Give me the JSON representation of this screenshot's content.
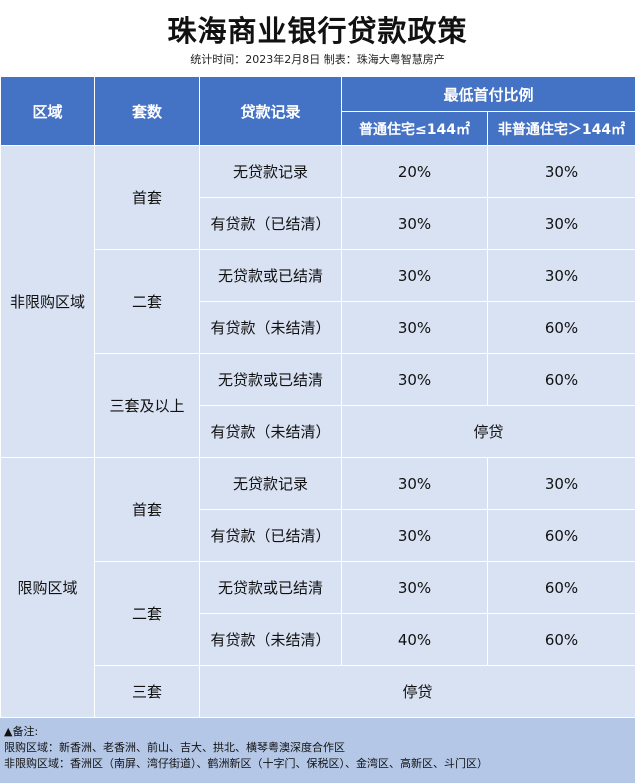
{
  "title": "珠海商业银行贷款政策",
  "subtitle": "统计时间：2023年2月8日  制表：珠海大粤智慧房产",
  "headers": {
    "region": "区域",
    "count": "套数",
    "loan_record": "贷款记录",
    "min_down_payment": "最低首付比例",
    "ordinary": "普通住宅≤144㎡",
    "non_ordinary": "非普通住宅＞144㎡"
  },
  "regions": [
    {
      "name": "非限购区域",
      "groups": [
        {
          "count": "首套",
          "rows": [
            {
              "record": "无贷款记录",
              "ordinary": "20%",
              "non_ordinary": "30%"
            },
            {
              "record": "有贷款（已结清）",
              "ordinary": "30%",
              "non_ordinary": "30%"
            }
          ]
        },
        {
          "count": "二套",
          "rows": [
            {
              "record": "无贷款或已结清",
              "ordinary": "30%",
              "non_ordinary": "30%"
            },
            {
              "record": "有贷款（未结清）",
              "ordinary": "30%",
              "non_ordinary": "60%"
            }
          ]
        },
        {
          "count": "三套及以上",
          "rows": [
            {
              "record": "无贷款或已结清",
              "ordinary": "30%",
              "non_ordinary": "60%"
            },
            {
              "record": "有贷款（未结清）",
              "merged": "停贷"
            }
          ]
        }
      ]
    },
    {
      "name": "限购区域",
      "groups": [
        {
          "count": "首套",
          "rows": [
            {
              "record": "无贷款记录",
              "ordinary": "30%",
              "non_ordinary": "30%"
            },
            {
              "record": "有贷款（已结清）",
              "ordinary": "30%",
              "non_ordinary": "60%"
            }
          ]
        },
        {
          "count": "二套",
          "rows": [
            {
              "record": "无贷款或已结清",
              "ordinary": "30%",
              "non_ordinary": "60%"
            },
            {
              "record": "有贷款（未结清）",
              "ordinary": "40%",
              "non_ordinary": "60%"
            }
          ]
        },
        {
          "count": "三套",
          "rows": [
            {
              "all_merged": "停贷"
            }
          ]
        }
      ]
    }
  ],
  "notes": {
    "heading": "▲备注:",
    "restricted": "限购区域：新香洲、老香洲、前山、吉大、拱北、横琴粤澳深度合作区",
    "unrestricted": "非限购区域：香洲区（南屏、湾仔街道）、鹤洲新区（十字门、保税区）、金湾区、高新区、斗门区）"
  }
}
